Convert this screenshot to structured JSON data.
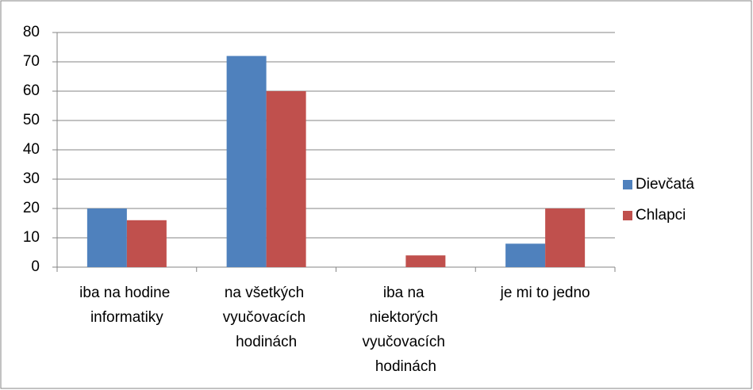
{
  "chart_data": {
    "type": "bar",
    "categories": [
      "iba na hodine informatiky",
      "na všetkých vyučovacích hodinách",
      "iba na niektorých vyučovacích hodinách",
      "je mi to jedno"
    ],
    "series": [
      {
        "name": "Dievčatá",
        "color": "#4f81bd",
        "values": [
          20,
          72,
          0,
          8
        ]
      },
      {
        "name": "Chlapci",
        "color": "#c0504d",
        "values": [
          16,
          60,
          4,
          20
        ]
      }
    ],
    "ylim": [
      0,
      80
    ],
    "yticks": [
      0,
      10,
      20,
      30,
      40,
      50,
      60,
      70,
      80
    ],
    "grid": true,
    "legend": "right"
  }
}
